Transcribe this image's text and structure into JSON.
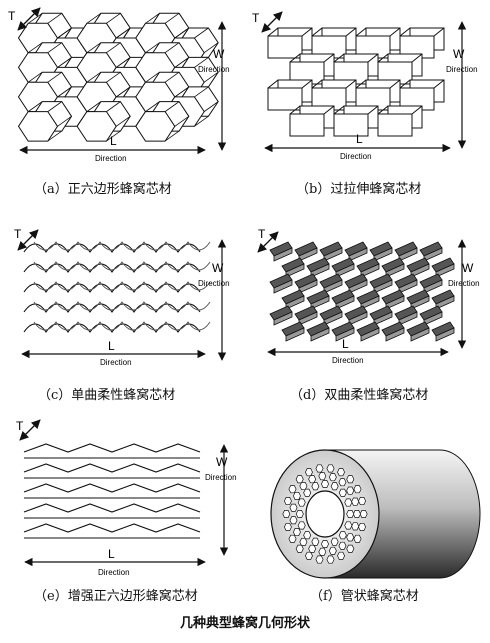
{
  "labels": {
    "thickness": "T",
    "width": "W",
    "length": "L",
    "direction": "Direction"
  },
  "panels": {
    "a": {
      "caption": "（a）正六边形蜂窝芯材"
    },
    "b": {
      "caption": "（b）过拉伸蜂窝芯材"
    },
    "c": {
      "caption": "（c）单曲柔性蜂窝芯材"
    },
    "d": {
      "caption": "（d）双曲柔性蜂窝芯材"
    },
    "e": {
      "caption": "（e）增强正六边形蜂窝芯材"
    },
    "f": {
      "caption": "（f）管状蜂窝芯材"
    }
  },
  "figure_title": "几种典型蜂窝几何形状",
  "colors": {
    "ink": "#111111",
    "dark_fill": "#555555",
    "light_fill": "#ffffff"
  }
}
